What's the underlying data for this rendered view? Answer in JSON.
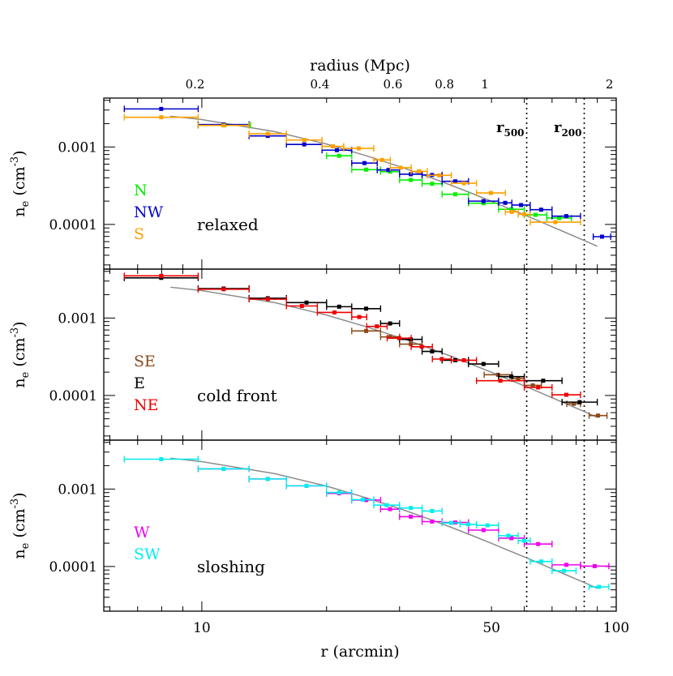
{
  "chart_data": {
    "type": "scatter",
    "log_x": true,
    "log_y": true,
    "xlabel": "r (arcmin)",
    "top_xlabel": "radius (Mpc)",
    "ylabel": "n_e (cm^-3)",
    "ylabel_main": "n",
    "ylabel_sub": "e",
    "ylabel_unit": "(cm",
    "ylabel_sup": "-3",
    "ylabel_close": ")",
    "xlim": [
      5.8,
      100
    ],
    "ylim": [
      2.65e-05,
      0.00428
    ],
    "x_ticks": [
      {
        "value": 10,
        "label": "10"
      },
      {
        "value": 50,
        "label": "50"
      },
      {
        "value": 100,
        "label": "100"
      }
    ],
    "top_ticks": [
      {
        "value": 9.63,
        "label": "0.2"
      },
      {
        "value": 19.26,
        "label": "0.4"
      },
      {
        "value": 28.9,
        "label": "0.6"
      },
      {
        "value": 38.5,
        "label": "0.8"
      },
      {
        "value": 48.2,
        "label": "1"
      },
      {
        "value": 96.3,
        "label": "2"
      }
    ],
    "y_ticks": [
      {
        "value": 0.001,
        "label": "0.001"
      },
      {
        "value": 0.0001,
        "label": "0.0001"
      }
    ],
    "vlines": [
      {
        "x": 60.8,
        "label_main": "r",
        "label_sub": "500"
      },
      {
        "x": 83.7,
        "label_main": "r",
        "label_sub": "200"
      }
    ],
    "model_curve": {
      "color": "#8c8c8c",
      "x": [
        8.4,
        10,
        15,
        20,
        25,
        30,
        35,
        40,
        45,
        50,
        55,
        60,
        65,
        70,
        75,
        80,
        85,
        90
      ],
      "y": [
        0.0025,
        0.00226,
        0.00158,
        0.00109,
        0.000768,
        0.000559,
        0.000418,
        0.00032,
        0.00025,
        0.000199,
        0.000161,
        0.000133,
        0.000111,
        9.35e-05,
        7.98e-05,
        6.88e-05,
        5.98e-05,
        5.23e-05
      ]
    },
    "panels": [
      {
        "label": "relaxed",
        "series": [
          {
            "name": "N",
            "color": "#00ee00",
            "points": [
              [
                9.8,
                13.1,
                0.00192
              ],
              [
                20,
                23,
                0.00077
              ],
              [
                23,
                27,
                0.00051
              ],
              [
                27,
                30,
                0.00048
              ],
              [
                30,
                34,
                0.000375
              ],
              [
                34,
                38,
                0.000335
              ],
              [
                38,
                44,
                0.000245
              ],
              [
                44,
                52,
                0.000188
              ],
              [
                52,
                60,
                0.000157
              ],
              [
                60,
                68,
                0.000133
              ],
              [
                68,
                78,
                0.000121
              ]
            ]
          },
          {
            "name": "NW",
            "color": "#0000cc",
            "points": [
              [
                6.5,
                9.8,
                0.0031
              ],
              [
                9.8,
                13,
                0.00195
              ],
              [
                13,
                16,
                0.00139
              ],
              [
                16,
                19.5,
                0.00108
              ],
              [
                19.5,
                23,
                0.00091
              ],
              [
                23,
                26.5,
                0.00062
              ],
              [
                26.5,
                30,
                0.000505
              ],
              [
                30,
                34,
                0.000445
              ],
              [
                34,
                38,
                0.000435
              ],
              [
                38,
                44,
                0.00036
              ],
              [
                44,
                52,
                0.0002
              ],
              [
                52,
                56,
                0.00019
              ],
              [
                56,
                62,
                0.000178
              ],
              [
                62,
                70,
                0.000155
              ],
              [
                70,
                82,
                0.000128
              ],
              [
                88,
                97,
                6.95e-05
              ]
            ]
          },
          {
            "name": "S",
            "color": "#ffa000",
            "points": [
              [
                6.5,
                9.8,
                0.00242
              ],
              [
                9.8,
                13,
                0.0019
              ],
              [
                13,
                16,
                0.00148
              ],
              [
                16,
                19.5,
                0.00123
              ],
              [
                19.5,
                22,
                0.00102
              ],
              [
                22,
                26,
                0.00096
              ],
              [
                26,
                28.5,
                0.00068
              ],
              [
                28.5,
                32,
                0.00054
              ],
              [
                32,
                35,
                0.000485
              ],
              [
                35,
                40,
                0.00043
              ],
              [
                40,
                46,
                0.00034
              ],
              [
                46,
                54,
                0.000255
              ],
              [
                54,
                58,
                0.000145
              ],
              [
                58,
                62,
                0.000135
              ],
              [
                62,
                82,
                0.000107
              ]
            ]
          }
        ]
      },
      {
        "label": "cold front",
        "series": [
          {
            "name": "SE",
            "color": "#8c4a1a",
            "points": [
              [
                23,
                27,
                0.00068
              ],
              [
                27,
                30,
                0.00057
              ],
              [
                30,
                34,
                0.00046
              ],
              [
                48,
                56,
                0.000185
              ],
              [
                56,
                60,
                0.000165
              ],
              [
                60,
                66,
                0.000135
              ],
              [
                76,
                82,
                7.8e-05
              ],
              [
                86,
                95,
                5.5e-05
              ]
            ]
          },
          {
            "name": "E",
            "color": "#000000",
            "points": [
              [
                6.5,
                9.8,
                0.0033
              ],
              [
                9.8,
                13,
                0.0024
              ],
              [
                13,
                16,
                0.0018
              ],
              [
                16,
                20,
                0.00158
              ],
              [
                20,
                23,
                0.0014
              ],
              [
                23,
                27,
                0.00132
              ],
              [
                27,
                30,
                0.00085
              ],
              [
                30,
                34,
                0.00053
              ],
              [
                34,
                38,
                0.00037
              ],
              [
                38,
                44,
                0.000285
              ],
              [
                44,
                52,
                0.000255
              ],
              [
                52,
                60,
                0.000175
              ],
              [
                60,
                74,
                0.000155
              ],
              [
                74,
                90,
                8.2e-05
              ]
            ]
          },
          {
            "name": "NE",
            "color": "#ee0000",
            "points": [
              [
                6.5,
                9.8,
                0.0035
              ],
              [
                9.8,
                13,
                0.00235
              ],
              [
                13,
                16,
                0.00175
              ],
              [
                16,
                19,
                0.00143
              ],
              [
                19,
                23,
                0.00118
              ],
              [
                23,
                25,
                0.00103
              ],
              [
                25,
                28,
                0.00078
              ],
              [
                28,
                32,
                0.00055
              ],
              [
                32,
                36,
                0.000425
              ],
              [
                36,
                40,
                0.000295
              ],
              [
                40,
                46,
                0.000285
              ],
              [
                46,
                60,
                0.000155
              ],
              [
                60,
                70,
                0.000127
              ],
              [
                70,
                82,
                0.000102
              ]
            ]
          }
        ]
      },
      {
        "label": "sloshing",
        "series": [
          {
            "name": "W",
            "color": "#ee00ee",
            "points": [
              [
                9.8,
                13,
                0.00182
              ],
              [
                13,
                16,
                0.00135
              ],
              [
                16,
                20,
                0.0011
              ],
              [
                20,
                23,
                0.00088
              ],
              [
                23,
                27,
                0.00072
              ],
              [
                27,
                30,
                0.00055
              ],
              [
                30,
                34,
                0.00044
              ],
              [
                34,
                38,
                0.00038
              ],
              [
                38,
                44,
                0.00037
              ],
              [
                44,
                52,
                0.000295
              ],
              [
                52,
                60,
                0.000232
              ],
              [
                60,
                70,
                0.000195
              ],
              [
                70,
                82,
                0.000105
              ],
              [
                82,
                96,
                0.000101
              ]
            ]
          },
          {
            "name": "SW",
            "color": "#00eeee",
            "points": [
              [
                6.5,
                9.8,
                0.00243
              ],
              [
                9.8,
                13,
                0.00182
              ],
              [
                13,
                16,
                0.00135
              ],
              [
                16,
                20,
                0.0011
              ],
              [
                20,
                23,
                0.0009
              ],
              [
                23,
                26,
                0.00073
              ],
              [
                26,
                30,
                0.00062
              ],
              [
                30,
                34,
                0.00057
              ],
              [
                34,
                38,
                0.00052
              ],
              [
                38,
                42,
                0.000365
              ],
              [
                42,
                46,
                0.00035
              ],
              [
                46,
                52,
                0.00034
              ],
              [
                52,
                58,
                0.00025
              ],
              [
                58,
                62,
                0.000215
              ],
              [
                62,
                70,
                0.000116
              ],
              [
                70,
                80,
                8.8e-05
              ],
              [
                86,
                96,
                5.45e-05
              ]
            ]
          }
        ]
      }
    ]
  }
}
